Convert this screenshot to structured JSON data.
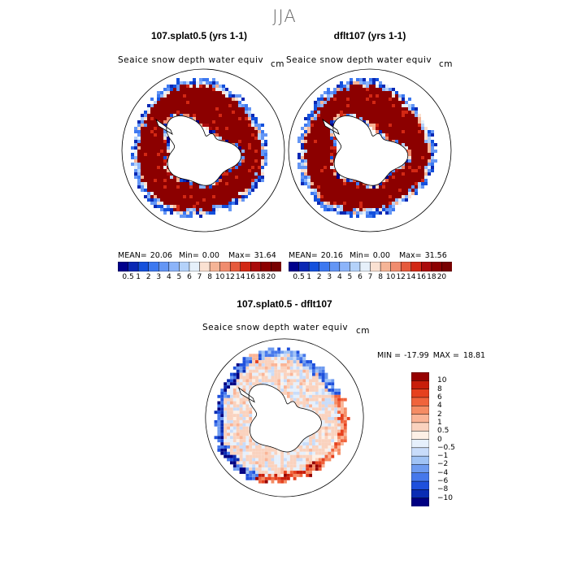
{
  "season_title": "JJA",
  "panels": [
    {
      "title": "107.splat0.5 (yrs 1-1)",
      "variable": "Seaice snow depth water equiv",
      "units": "cm",
      "stats": {
        "mean_label": "MEAN=",
        "mean": "20.06",
        "min_label": "Min=",
        "min": "0.00",
        "max_label": "Max=",
        "max": "31.64"
      }
    },
    {
      "title": "dflt107 (yrs 1-1)",
      "variable": "Seaice snow depth water equiv",
      "units": "cm",
      "stats": {
        "mean_label": "MEAN=",
        "mean": "20.16",
        "min_label": "Min=",
        "min": "0.00",
        "max_label": "Max=",
        "max": "31.56"
      }
    }
  ],
  "diff_panel": {
    "title": "107.splat0.5 - dflt107",
    "variable": "Seaice snow depth water equiv",
    "units": "cm",
    "minmax": {
      "min_label": "MIN =",
      "min": "-17.99",
      "max_label": "MAX =",
      "max": "18.81"
    }
  },
  "chart_data": [
    {
      "type": "heatmap",
      "projection": "south-polar-stereographic",
      "title": "107.splat0.5 (yrs 1-1)",
      "variable": "Seaice snow depth water equiv",
      "units": "cm",
      "mean": 20.06,
      "min": 0.0,
      "max": 31.64,
      "colorbar_levels": [
        "0.5",
        "1",
        "2",
        "3",
        "4",
        "5",
        "6",
        "7",
        "8",
        "10",
        "12",
        "14",
        "16",
        "18",
        "20"
      ],
      "colorbar_colors": [
        "#00008c",
        "#0a28b4",
        "#1450dc",
        "#3c78f0",
        "#6496f5",
        "#8cb4fa",
        "#b4d2fa",
        "#e6f0fa",
        "#fae1d2",
        "#f5b496",
        "#f08c6e",
        "#e65a3c",
        "#d22814",
        "#aa0a0a",
        "#8c0000",
        "#780000"
      ]
    },
    {
      "type": "heatmap",
      "projection": "south-polar-stereographic",
      "title": "dflt107 (yrs 1-1)",
      "variable": "Seaice snow depth water equiv",
      "units": "cm",
      "mean": 20.16,
      "min": 0.0,
      "max": 31.56,
      "colorbar_levels": [
        "0.5",
        "1",
        "2",
        "3",
        "4",
        "5",
        "6",
        "7",
        "8",
        "10",
        "12",
        "14",
        "16",
        "18",
        "20"
      ],
      "colorbar_colors": [
        "#00008c",
        "#0a28b4",
        "#1450dc",
        "#3c78f0",
        "#6496f5",
        "#8cb4fa",
        "#b4d2fa",
        "#e6f0fa",
        "#fae1d2",
        "#f5b496",
        "#f08c6e",
        "#e65a3c",
        "#d22814",
        "#aa0a0a",
        "#8c0000",
        "#780000"
      ]
    },
    {
      "type": "heatmap",
      "projection": "south-polar-stereographic",
      "title": "107.splat0.5 - dflt107",
      "variable": "Seaice snow depth water equiv",
      "units": "cm",
      "min": -17.99,
      "max": 18.81,
      "colorbar_levels": [
        "10",
        "8",
        "6",
        "4",
        "2",
        "1",
        "0.5",
        "0",
        "−0.5",
        "−1",
        "−2",
        "−4",
        "−6",
        "−8",
        "−10"
      ],
      "colorbar_colors": [
        "#960000",
        "#c81e0a",
        "#e6411e",
        "#f0643c",
        "#f58c64",
        "#fab496",
        "#fad2be",
        "#fdf0e6",
        "#e6f0fc",
        "#c8dcfa",
        "#a0c3f5",
        "#6e9bf0",
        "#4678eb",
        "#1e50dc",
        "#0a2db4",
        "#000082"
      ]
    }
  ]
}
